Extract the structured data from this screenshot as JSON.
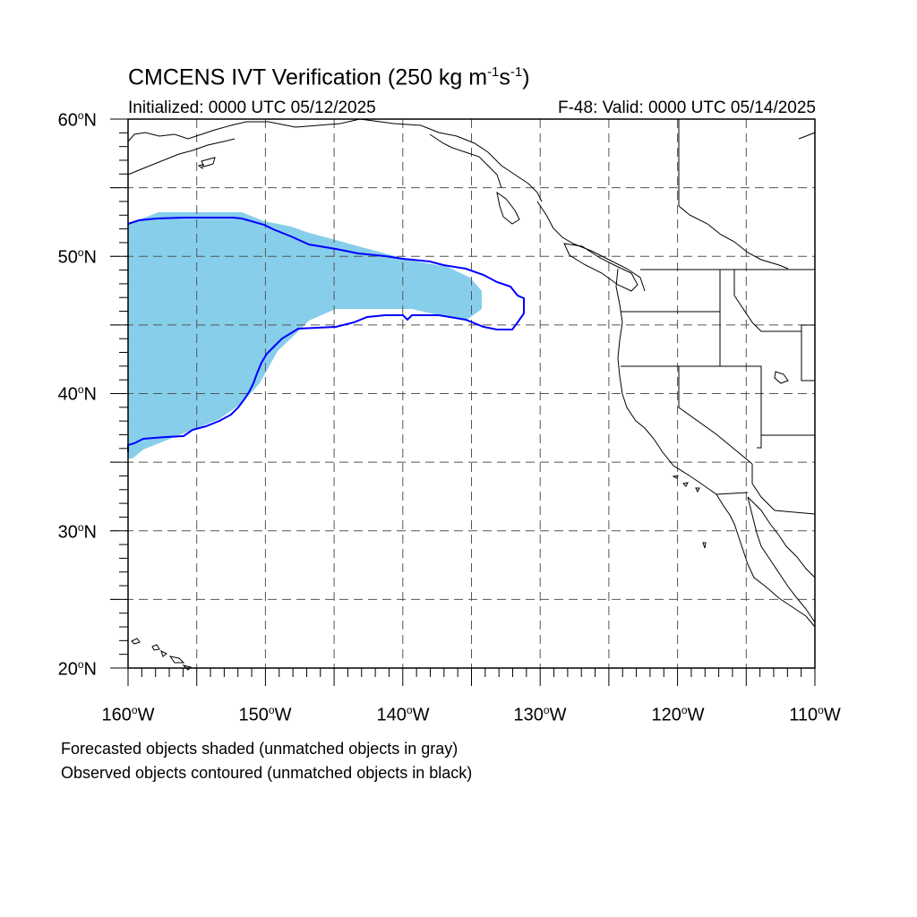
{
  "title": {
    "main": "CMCENS IVT Verification (250 kg m",
    "exp1": "-1",
    "mid": "s",
    "exp2": "-1",
    "end": ")"
  },
  "subtitle_left": "Initialized: 0000 UTC 05/12/2025",
  "subtitle_right": "F-48: Valid: 0000 UTC 05/14/2025",
  "lat_labels": [
    {
      "num": "60",
      "deg": "o",
      "hemi": "N"
    },
    {
      "num": "50",
      "deg": "o",
      "hemi": "N"
    },
    {
      "num": "40",
      "deg": "o",
      "hemi": "N"
    },
    {
      "num": "30",
      "deg": "o",
      "hemi": "N"
    },
    {
      "num": "20",
      "deg": "o",
      "hemi": "N"
    }
  ],
  "lon_labels": [
    {
      "num": "160",
      "deg": "o",
      "hemi": "W"
    },
    {
      "num": "150",
      "deg": "o",
      "hemi": "W"
    },
    {
      "num": "140",
      "deg": "o",
      "hemi": "W"
    },
    {
      "num": "130",
      "deg": "o",
      "hemi": "W"
    },
    {
      "num": "120",
      "deg": "o",
      "hemi": "W"
    },
    {
      "num": "110",
      "deg": "o",
      "hemi": "W"
    }
  ],
  "notes": [
    "Forecasted objects shaded (unmatched objects in gray)",
    "Observed objects contoured (unmatched objects in black)"
  ],
  "map": {
    "lon_range": [
      -160,
      -110
    ],
    "lat_range": [
      20,
      60
    ],
    "grid_lons": [
      -155,
      -150,
      -145,
      -140,
      -135,
      -130,
      -125,
      -120,
      -115
    ],
    "grid_lats": [
      25,
      30,
      35,
      40,
      45,
      50,
      55
    ],
    "forecast_fill_color": "#87ceeb",
    "observed_contour_color": "#0000ff",
    "grid_color": "#555555",
    "coast_color": "#000000"
  }
}
